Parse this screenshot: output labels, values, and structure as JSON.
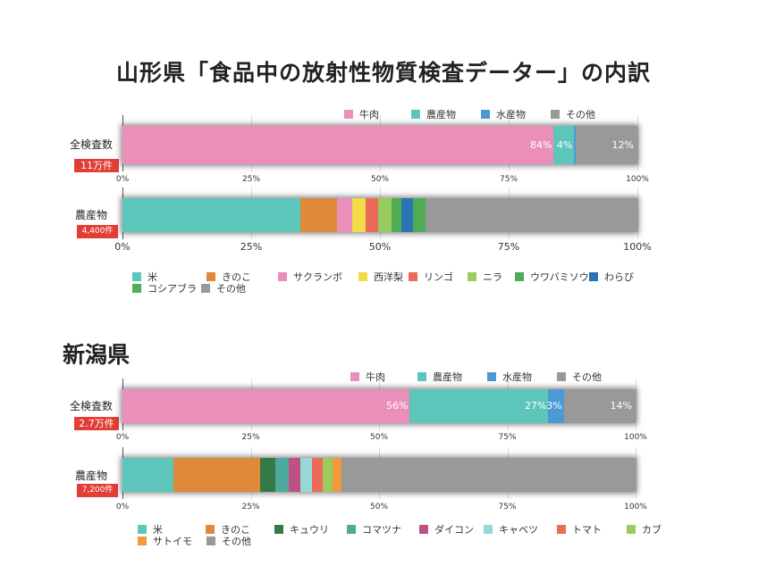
{
  "title": "山形県「食品中の放射性物質検査データー」の内訳",
  "section_title": "新潟県",
  "colors": {
    "pink": "#ea8fba",
    "teal": "#5cc6ba",
    "blue": "#4b99d5",
    "gray": "#999999",
    "orange": "#df893a",
    "yellow": "#f1dc46",
    "red": "#ec6a5a",
    "lime": "#99cb5f",
    "green": "#50ad56",
    "navy": "#2b75b4",
    "darkgreen": "#357a46",
    "teal2": "#4ca99b",
    "magenta": "#be5083",
    "cyan": "#95d8d7",
    "orange2": "#f09a3a",
    "badge": "#e23e36"
  },
  "chart_data": [
    {
      "type": "bar",
      "stacked": true,
      "orientation": "horizontal",
      "region": "山形県",
      "row_label": "全検査数",
      "count_label": "11万件",
      "ticks": [
        "0%",
        "25%",
        "50%",
        "75%",
        "100%"
      ],
      "xlim": [
        0,
        100
      ],
      "series": [
        {
          "name": "牛肉",
          "value": 84,
          "label": "84%",
          "color": "pink"
        },
        {
          "name": "農産物",
          "value": 4,
          "label": "4%",
          "color": "teal"
        },
        {
          "name": "水産物",
          "value": 0.3,
          "label": "0.3%",
          "color": "blue"
        },
        {
          "name": "その他",
          "value": 12,
          "label": "12%",
          "color": "gray"
        }
      ]
    },
    {
      "type": "bar",
      "stacked": true,
      "orientation": "horizontal",
      "region": "山形県",
      "row_label": "農産物",
      "count_label": "4,400件",
      "ticks": [
        "0%",
        "25%",
        "50%",
        "75%",
        "100%"
      ],
      "xlim": [
        0,
        100
      ],
      "series": [
        {
          "name": "米",
          "value": 34.5,
          "color": "teal"
        },
        {
          "name": "きのこ",
          "value": 7.2,
          "color": "orange"
        },
        {
          "name": "サクランボ",
          "value": 3.0,
          "color": "pink"
        },
        {
          "name": "西洋梨",
          "value": 2.5,
          "color": "yellow"
        },
        {
          "name": "リンゴ",
          "value": 2.5,
          "color": "red"
        },
        {
          "name": "ニラ",
          "value": 2.5,
          "color": "lime"
        },
        {
          "name": "ウワバミソウ",
          "value": 2.0,
          "color": "green"
        },
        {
          "name": "わらび",
          "value": 2.3,
          "color": "navy"
        },
        {
          "name": "コシアブラ",
          "value": 2.3,
          "color": "green"
        },
        {
          "name": "その他",
          "value": 41.2,
          "color": "gray"
        }
      ]
    },
    {
      "type": "bar",
      "stacked": true,
      "orientation": "horizontal",
      "region": "新潟県",
      "row_label": "全検査数",
      "count_label": "2.7万件",
      "ticks": [
        "0%",
        "25%",
        "50%",
        "75%",
        "100%"
      ],
      "xlim": [
        0,
        100
      ],
      "series": [
        {
          "name": "牛肉",
          "value": 56,
          "label": "56%",
          "color": "pink"
        },
        {
          "name": "農産物",
          "value": 27,
          "label": "27%",
          "color": "teal"
        },
        {
          "name": "水産物",
          "value": 3,
          "label": "3%",
          "color": "blue"
        },
        {
          "name": "その他",
          "value": 14,
          "label": "14%",
          "color": "gray"
        }
      ]
    },
    {
      "type": "bar",
      "stacked": true,
      "orientation": "horizontal",
      "region": "新潟県",
      "row_label": "農産物",
      "count_label": "7,200件",
      "ticks": [
        "0%",
        "25%",
        "50%",
        "75%",
        "100%"
      ],
      "xlim": [
        0,
        100
      ],
      "series": [
        {
          "name": "米",
          "value": 9.9,
          "color": "teal"
        },
        {
          "name": "きのこ",
          "value": 17.0,
          "color": "orange"
        },
        {
          "name": "キュウリ",
          "value": 2.9,
          "color": "darkgreen"
        },
        {
          "name": "コマツナ",
          "value": 2.6,
          "color": "teal2"
        },
        {
          "name": "ダイコン",
          "value": 2.3,
          "color": "magenta"
        },
        {
          "name": "キャベツ",
          "value": 2.3,
          "color": "cyan"
        },
        {
          "name": "トマト",
          "value": 2.0,
          "color": "red"
        },
        {
          "name": "カブ",
          "value": 2.0,
          "color": "lime"
        },
        {
          "name": "サトイモ",
          "value": 1.7,
          "color": "orange2"
        },
        {
          "name": "その他",
          "value": 57.3,
          "color": "gray"
        }
      ]
    }
  ]
}
